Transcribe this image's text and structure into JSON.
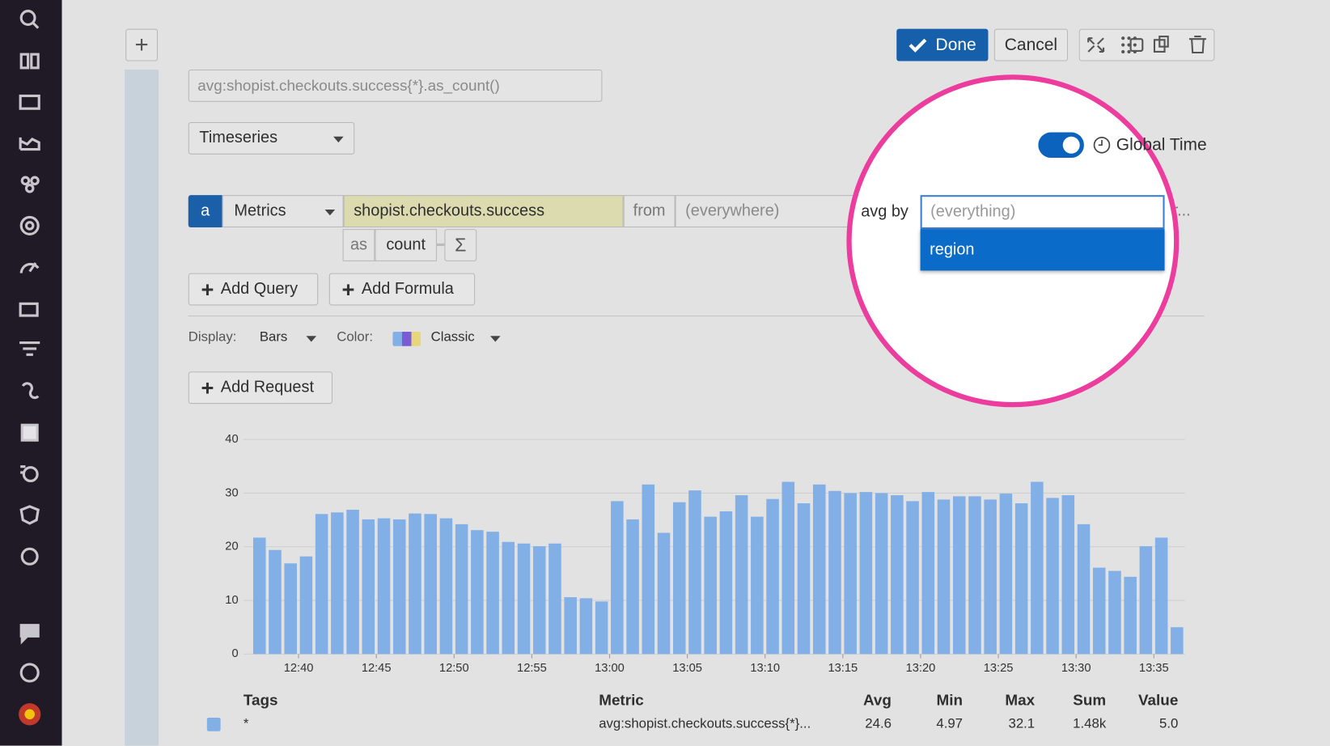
{
  "toolbar": {
    "done": "Done",
    "cancel": "Cancel"
  },
  "query_string": "avg:shopist.checkouts.success{*}.as_count()",
  "visualization": "Timeseries",
  "query": {
    "letter": "a",
    "source": "Metrics",
    "metric": "shopist.checkouts.success",
    "from_label": "from",
    "from_value": "(everywhere)",
    "avg_by_label": "avg by",
    "avg_by_placeholder": "(everything)",
    "avg_by_option": "region",
    "truncated": "ar...",
    "as_label": "as",
    "as_value": "count",
    "sigma": "Σ"
  },
  "global_time": "Global Time",
  "buttons": {
    "add_query": "Add Query",
    "add_formula": "Add Formula",
    "add_request": "Add Request"
  },
  "display": {
    "display_label": "Display:",
    "display_value": "Bars",
    "color_label": "Color:",
    "color_value": "Classic"
  },
  "chart_data": {
    "type": "bar",
    "categories": [
      null,
      null,
      null,
      "12:40",
      null,
      null,
      null,
      null,
      "12:45",
      null,
      null,
      null,
      null,
      "12:50",
      null,
      null,
      null,
      null,
      "12:55",
      null,
      null,
      null,
      null,
      "13:00",
      null,
      null,
      null,
      null,
      "13:05",
      null,
      null,
      null,
      null,
      "13:10",
      null,
      null,
      null,
      null,
      "13:15",
      null,
      null,
      null,
      null,
      "13:20",
      null,
      null,
      null,
      null,
      "13:25",
      null,
      null,
      null,
      null,
      "13:30",
      null,
      null,
      null,
      null,
      "13:35",
      null
    ],
    "values": [
      21.7,
      19.4,
      16.9,
      18.2,
      26.1,
      26.4,
      26.9,
      25.1,
      25.3,
      25.1,
      26.2,
      26.1,
      25.3,
      24.2,
      23.1,
      22.8,
      20.9,
      20.6,
      20.1,
      20.6,
      10.6,
      10.4,
      9.8,
      28.5,
      25.1,
      31.6,
      22.6,
      28.3,
      30.5,
      25.6,
      26.6,
      29.6,
      25.6,
      28.9,
      32.1,
      28.1,
      31.6,
      30.4,
      30.0,
      30.2,
      30.0,
      29.6,
      28.5,
      30.2,
      28.8,
      29.4,
      29.4,
      28.8,
      29.9,
      28.1,
      32.1,
      29.1,
      29.6,
      24.2,
      16.1,
      15.5,
      14.4,
      20.1,
      21.7,
      5.0
    ],
    "color": "#82b0e6",
    "ylim": [
      0,
      40
    ],
    "yticks": [
      0,
      10,
      20,
      30,
      40
    ],
    "grid": true
  },
  "table": {
    "headers": [
      "Tags",
      "Metric",
      "Avg",
      "Min",
      "Max",
      "Sum",
      "Value"
    ],
    "rows": [
      [
        "*",
        "avg:shopist.checkouts.success{*}...",
        "24.6",
        "4.97",
        "32.1",
        "1.48k",
        "5.0"
      ]
    ]
  }
}
